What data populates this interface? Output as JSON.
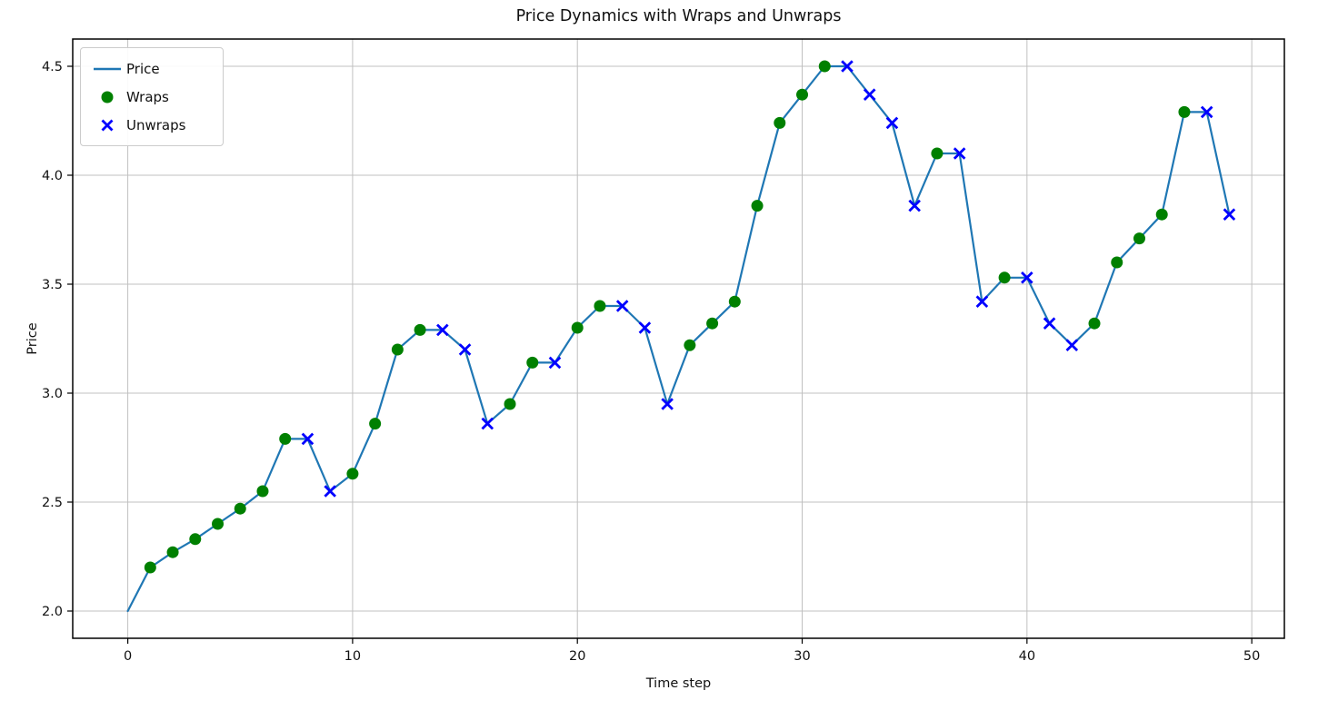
{
  "chart_data": {
    "type": "line",
    "title": "Price Dynamics with Wraps and Unwraps",
    "xlabel": "Time step",
    "ylabel": "Price",
    "x": [
      0,
      1,
      2,
      3,
      4,
      5,
      6,
      7,
      8,
      9,
      10,
      11,
      12,
      13,
      14,
      15,
      16,
      17,
      18,
      19,
      20,
      21,
      22,
      23,
      24,
      25,
      26,
      27,
      28,
      29,
      30,
      31,
      32,
      33,
      34,
      35,
      36,
      37,
      38,
      39,
      40,
      41,
      42,
      43,
      44,
      45,
      46,
      47,
      48,
      49
    ],
    "series": [
      {
        "name": "Price",
        "values": [
          2.0,
          2.2,
          2.27,
          2.33,
          2.4,
          2.47,
          2.55,
          2.79,
          2.79,
          2.55,
          2.63,
          2.86,
          3.2,
          3.29,
          3.29,
          3.2,
          2.86,
          2.95,
          3.14,
          3.14,
          3.3,
          3.4,
          3.4,
          3.3,
          2.95,
          3.22,
          3.32,
          3.42,
          3.86,
          4.24,
          4.37,
          4.5,
          4.5,
          4.37,
          4.24,
          3.86,
          4.1,
          4.1,
          3.42,
          3.53,
          3.53,
          3.32,
          3.22,
          3.32,
          3.6,
          3.71,
          3.82,
          4.29,
          4.29,
          3.82
        ]
      }
    ],
    "markers": [
      {
        "name": "Wraps",
        "type": "circle",
        "indices": [
          1,
          2,
          3,
          4,
          5,
          6,
          7,
          10,
          11,
          12,
          13,
          17,
          18,
          20,
          21,
          25,
          26,
          27,
          28,
          29,
          30,
          31,
          36,
          39,
          43,
          44,
          45,
          46,
          47
        ]
      },
      {
        "name": "Unwraps",
        "type": "x",
        "indices": [
          8,
          9,
          14,
          15,
          16,
          19,
          22,
          23,
          24,
          32,
          33,
          34,
          35,
          37,
          38,
          40,
          41,
          42,
          48,
          49
        ]
      }
    ],
    "legend": [
      {
        "label": "Price",
        "marker": "line"
      },
      {
        "label": "Wraps",
        "marker": "circle"
      },
      {
        "label": "Unwraps",
        "marker": "x"
      }
    ],
    "legend_position": "upper left",
    "grid": true,
    "xlim": [
      -2.45,
      51.45
    ],
    "ylim": [
      1.875,
      4.625
    ],
    "xticks": [
      0,
      10,
      20,
      30,
      40,
      50
    ],
    "yticks": [
      2.0,
      2.5,
      3.0,
      3.5,
      4.0,
      4.5
    ],
    "colors": {
      "line": "#1f77b4",
      "wraps": "#008000",
      "unwraps": "#0000ff",
      "grid": "#c0c0c0",
      "spine": "#000000"
    }
  }
}
